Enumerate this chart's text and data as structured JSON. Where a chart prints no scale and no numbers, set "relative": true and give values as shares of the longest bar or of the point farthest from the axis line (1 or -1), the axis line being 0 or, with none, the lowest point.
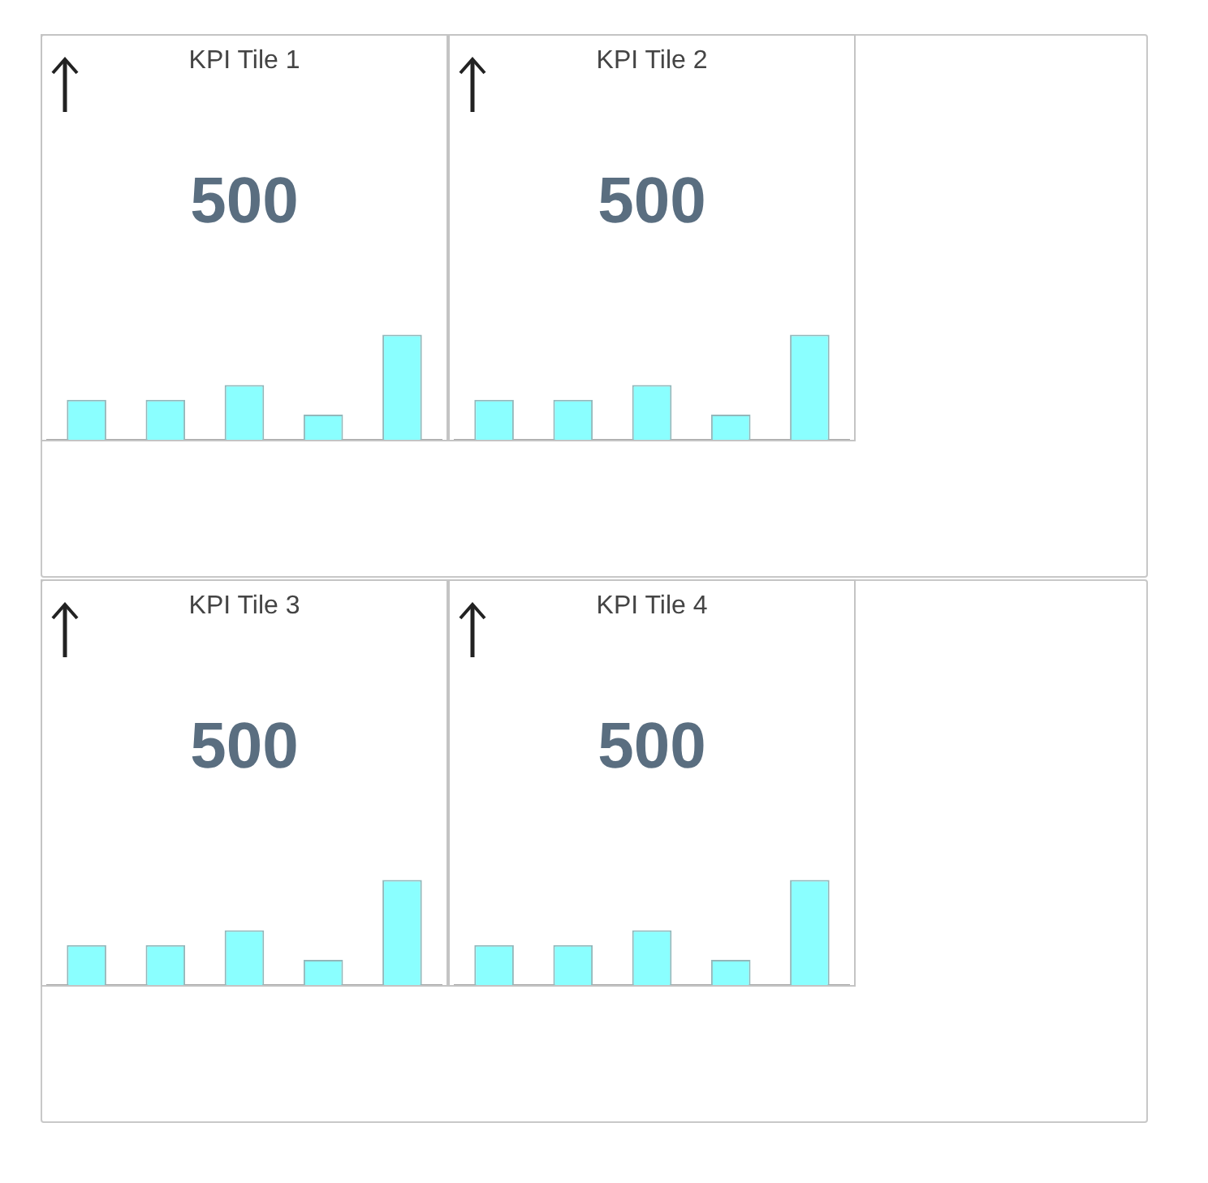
{
  "chart_data": [
    {
      "type": "bar",
      "title": "KPI Tile 1",
      "annotations": [
        "500"
      ],
      "categories": [
        null,
        null,
        null,
        null,
        null
      ],
      "values": [
        0.38,
        0.38,
        0.52,
        0.24,
        1
      ],
      "color": "#8affff",
      "relative": true,
      "tick_labels": false
    },
    {
      "type": "bar",
      "title": "KPI Tile 2",
      "annotations": [
        "500"
      ],
      "categories": [
        null,
        null,
        null,
        null,
        null
      ],
      "values": [
        0.38,
        0.38,
        0.52,
        0.24,
        1
      ],
      "color": "#8affff",
      "relative": true,
      "tick_labels": false
    },
    {
      "type": "bar",
      "title": "KPI Tile 3",
      "annotations": [
        "500"
      ],
      "categories": [
        null,
        null,
        null,
        null,
        null
      ],
      "values": [
        0.38,
        0.38,
        0.52,
        0.24,
        1
      ],
      "color": "#8affff",
      "relative": true,
      "tick_labels": false
    },
    {
      "type": "bar",
      "title": "KPI Tile 4",
      "annotations": [
        "500"
      ],
      "categories": [
        null,
        null,
        null,
        null,
        null
      ],
      "values": [
        0.38,
        0.38,
        0.52,
        0.24,
        1
      ],
      "color": "#8affff",
      "relative": true,
      "tick_labels": false
    }
  ]
}
